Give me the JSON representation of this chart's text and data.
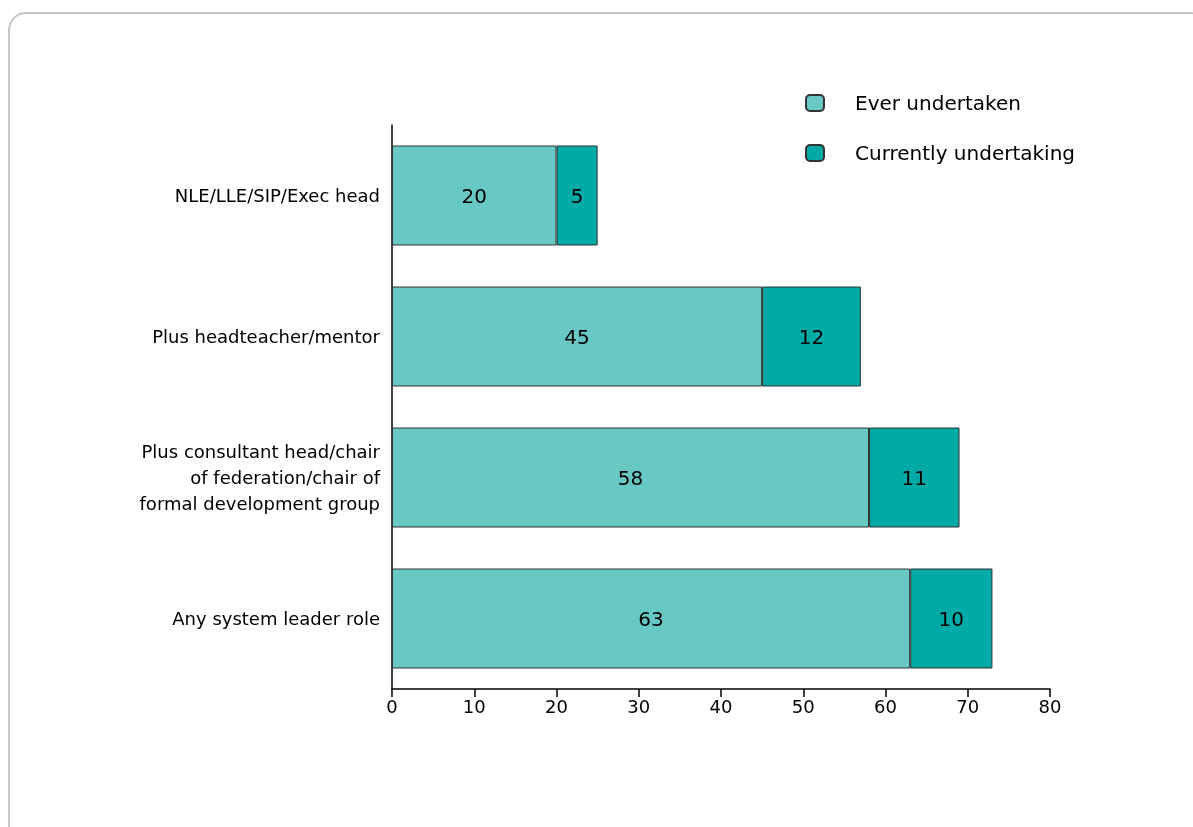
{
  "chart_data": {
    "type": "bar",
    "orientation": "horizontal",
    "stacked": true,
    "categories": [
      "NLE/LLE/SIP/Exec head",
      "Plus headteacher/mentor",
      "Plus consultant head/chair of federation/chair of formal development group",
      "Any system leader role"
    ],
    "series": [
      {
        "name": "Ever undertaken",
        "color": "#68c8c4",
        "values": [
          20,
          45,
          58,
          63
        ]
      },
      {
        "name": "Currently undertaking",
        "color": "#00aaa6",
        "values": [
          5,
          12,
          11,
          10
        ]
      }
    ],
    "xlim": [
      0,
      80
    ],
    "xticks": [
      0,
      10,
      20,
      30,
      40,
      50,
      60,
      70,
      80
    ],
    "grid": false,
    "legend": "top right",
    "data_labels": true
  }
}
